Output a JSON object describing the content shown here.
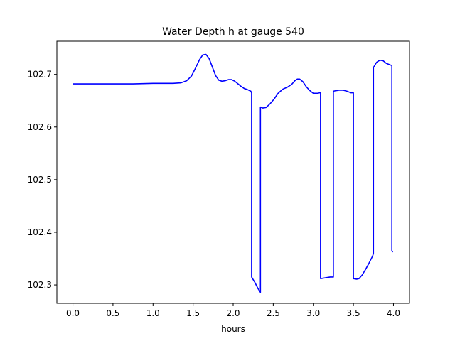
{
  "chart_data": {
    "type": "line",
    "title": "Water Depth h at gauge 540",
    "xlabel": "hours",
    "ylabel": "",
    "xlim": [
      -0.2,
      4.2
    ],
    "ylim": [
      102.265,
      102.763
    ],
    "xticks": [
      0.0,
      0.5,
      1.0,
      1.5,
      2.0,
      2.5,
      3.0,
      3.5,
      4.0
    ],
    "xtick_labels": [
      "0.0",
      "0.5",
      "1.0",
      "1.5",
      "2.0",
      "2.5",
      "3.0",
      "3.5",
      "4.0"
    ],
    "yticks": [
      102.3,
      102.4,
      102.5,
      102.6,
      102.7
    ],
    "ytick_labels": [
      "102.3",
      "102.4",
      "102.5",
      "102.6",
      "102.7"
    ],
    "grid": false,
    "series": [
      {
        "color": "#0000ff",
        "x": [
          0.0,
          0.25,
          0.5,
          0.75,
          1.0,
          1.25,
          1.35,
          1.42,
          1.48,
          1.53,
          1.58,
          1.62,
          1.66,
          1.7,
          1.74,
          1.78,
          1.82,
          1.86,
          1.9,
          1.94,
          1.98,
          2.02,
          2.06,
          2.1,
          2.14,
          2.18,
          2.22,
          2.23,
          2.23,
          2.27,
          2.31,
          2.34,
          2.34,
          2.37,
          2.41,
          2.46,
          2.51,
          2.56,
          2.62,
          2.68,
          2.73,
          2.77,
          2.8,
          2.83,
          2.87,
          2.91,
          2.95,
          3.0,
          3.05,
          3.08,
          3.09,
          3.09,
          3.13,
          3.17,
          3.21,
          3.25,
          3.25,
          3.28,
          3.32,
          3.37,
          3.42,
          3.47,
          3.5,
          3.5,
          3.54,
          3.57,
          3.61,
          3.65,
          3.69,
          3.74,
          3.75,
          3.75,
          3.79,
          3.83,
          3.87,
          3.91,
          3.96,
          3.98,
          3.98,
          3.99
        ],
        "y": [
          102.682,
          102.682,
          102.682,
          102.682,
          102.683,
          102.683,
          102.684,
          102.688,
          102.697,
          102.712,
          102.728,
          102.737,
          102.738,
          102.73,
          102.714,
          102.698,
          102.689,
          102.687,
          102.688,
          102.69,
          102.69,
          102.687,
          102.682,
          102.677,
          102.673,
          102.671,
          102.668,
          102.665,
          102.315,
          102.305,
          102.293,
          102.286,
          102.638,
          102.636,
          102.637,
          102.644,
          102.653,
          102.664,
          102.672,
          102.676,
          102.681,
          102.688,
          102.691,
          102.691,
          102.686,
          102.677,
          102.67,
          102.664,
          102.664,
          102.665,
          102.665,
          102.312,
          102.313,
          102.314,
          102.315,
          102.315,
          102.668,
          102.669,
          102.67,
          102.67,
          102.668,
          102.665,
          102.665,
          102.312,
          102.311,
          102.312,
          102.319,
          102.329,
          102.34,
          102.355,
          102.36,
          102.713,
          102.723,
          102.727,
          102.726,
          102.721,
          102.718,
          102.717,
          102.365,
          102.362
        ]
      }
    ]
  }
}
